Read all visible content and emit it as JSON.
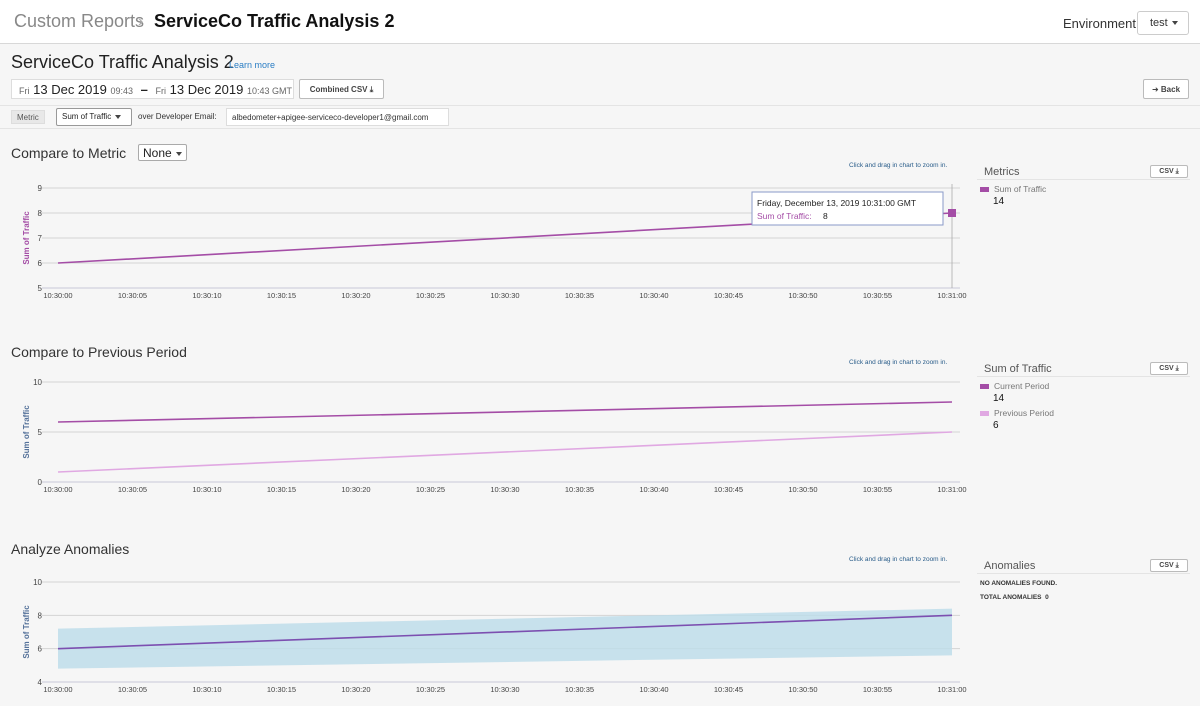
{
  "header": {
    "breadcrumb_root": "Custom Reports",
    "breadcrumb_sep": "›",
    "title": "ServiceCo Traffic Analysis 2",
    "environment_label": "Environment",
    "environment_value": "test"
  },
  "report": {
    "title": "ServiceCo Traffic Analysis 2",
    "learn_more": "Learn more",
    "date_from_day": "Fri",
    "date_from": "13 Dec 2019",
    "date_from_time": "09:43",
    "date_sep": "–",
    "date_to_day": "Fri",
    "date_to": "13 Dec 2019",
    "date_to_time": "10:43 GMT",
    "combined_csv": "Combined CSV ⤓",
    "back": "➜ Back",
    "metric_label": "Metric",
    "metric_value": "Sum of Traffic",
    "over_label": "over Developer Email:",
    "email": "albedometer+apigee-serviceco-developer1@gmail.com"
  },
  "zoom_hint": "Click and drag in chart to zoom in.",
  "csv_label": "CSV ⤓",
  "colors": {
    "current": "#a44da6",
    "previous": "#e0a8e2",
    "anomaly_line": "#7c4fb0",
    "band": "#bcdcea"
  },
  "sections": {
    "metric": {
      "title": "Compare to Metric",
      "compare_value": "None"
    },
    "previous": {
      "title": "Compare to Previous Period"
    },
    "anomalies": {
      "title": "Analyze Anomalies"
    }
  },
  "panels": {
    "metric": {
      "title": "Metrics",
      "items": [
        {
          "label": "Sum of Traffic",
          "value": "14"
        }
      ]
    },
    "previous": {
      "title": "Sum of Traffic",
      "items": [
        {
          "label": "Current Period",
          "value": "14"
        },
        {
          "label": "Previous Period",
          "value": "6"
        }
      ]
    },
    "anomalies": {
      "title": "Anomalies",
      "none_found": "NO ANOMALIES FOUND.",
      "total_label": "TOTAL ANOMALIES",
      "total_value": "0"
    }
  },
  "chart_data": [
    {
      "type": "line",
      "title": "Compare to Metric",
      "ylabel": "Sum of Traffic",
      "x": [
        "10:30:00",
        "10:30:05",
        "10:30:10",
        "10:30:15",
        "10:30:20",
        "10:30:25",
        "10:30:30",
        "10:30:35",
        "10:30:40",
        "10:30:45",
        "10:30:50",
        "10:30:55",
        "10:31:00"
      ],
      "ylim": [
        5,
        9
      ],
      "yticks": [
        5,
        6,
        7,
        8,
        9
      ],
      "series": [
        {
          "name": "Sum of Traffic",
          "x": [
            "10:30:00",
            "10:31:00"
          ],
          "values": [
            6,
            8
          ]
        }
      ],
      "tooltip": {
        "heading": "Friday, December 13, 2019 10:31:00 GMT",
        "label": "Sum of Traffic:",
        "value": "8"
      }
    },
    {
      "type": "line",
      "title": "Compare to Previous Period",
      "ylabel": "Sum of Traffic",
      "x": [
        "10:30:00",
        "10:30:05",
        "10:30:10",
        "10:30:15",
        "10:30:20",
        "10:30:25",
        "10:30:30",
        "10:30:35",
        "10:30:40",
        "10:30:45",
        "10:30:50",
        "10:30:55",
        "10:31:00"
      ],
      "ylim": [
        0,
        10
      ],
      "yticks": [
        0,
        5,
        10
      ],
      "series": [
        {
          "name": "Current Period",
          "x": [
            "10:30:00",
            "10:31:00"
          ],
          "values": [
            6,
            8
          ]
        },
        {
          "name": "Previous Period",
          "x": [
            "10:30:00",
            "10:31:00"
          ],
          "values": [
            1,
            5
          ]
        }
      ]
    },
    {
      "type": "area",
      "title": "Analyze Anomalies",
      "ylabel": "Sum of Traffic",
      "x": [
        "10:30:00",
        "10:30:05",
        "10:30:10",
        "10:30:15",
        "10:30:20",
        "10:30:25",
        "10:30:30",
        "10:30:35",
        "10:30:40",
        "10:30:45",
        "10:30:50",
        "10:30:55",
        "10:31:00"
      ],
      "ylim": [
        4,
        10
      ],
      "yticks": [
        4,
        6,
        8,
        10
      ],
      "series": [
        {
          "name": "",
          "x": [
            "10:30:00",
            "10:31:00"
          ],
          "values": [
            6,
            8
          ]
        }
      ],
      "band": {
        "x": [
          "10:30:00",
          "10:31:00"
        ],
        "lower": [
          4.8,
          5.6
        ],
        "upper": [
          7.2,
          8.4
        ]
      }
    }
  ]
}
